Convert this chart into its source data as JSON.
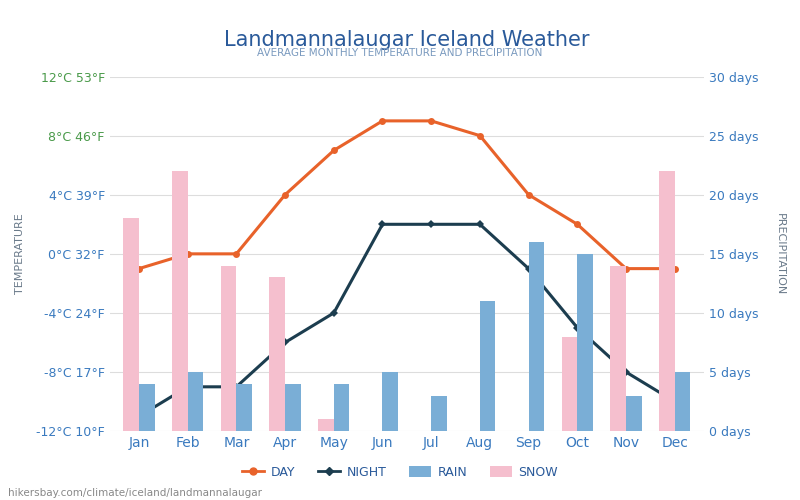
{
  "title": "Landmannalaugar Iceland Weather",
  "subtitle": "AVERAGE MONTHLY TEMPERATURE AND PRECIPITATION",
  "months": [
    "Jan",
    "Feb",
    "Mar",
    "Apr",
    "May",
    "Jun",
    "Jul",
    "Aug",
    "Sep",
    "Oct",
    "Nov",
    "Dec"
  ],
  "day_temp": [
    -1,
    0,
    0,
    4,
    7,
    9,
    9,
    8,
    4,
    2,
    -1,
    -1
  ],
  "night_temp": [
    -11,
    -9,
    -9,
    -6,
    -4,
    2,
    2,
    2,
    -1,
    -5,
    -8,
    -10
  ],
  "rain_days": [
    4,
    5,
    4,
    4,
    4,
    5,
    3,
    11,
    16,
    15,
    3,
    5
  ],
  "snow_days": [
    18,
    22,
    14,
    13,
    1,
    0,
    0,
    0,
    0,
    8,
    14,
    22
  ],
  "temp_yticks": [
    -12,
    -8,
    -4,
    0,
    4,
    8,
    12
  ],
  "temp_ylabels": [
    "-12°C 10°F",
    "-8°C 17°F",
    "-4°C 24°F",
    "0°C 32°F",
    "4°C 39°F",
    "8°C 46°F",
    "12°C 53°F"
  ],
  "precip_yticks": [
    0,
    5,
    10,
    15,
    20,
    25,
    30
  ],
  "precip_ylabels": [
    "0 days",
    "5 days",
    "10 days",
    "15 days",
    "20 days",
    "25 days",
    "30 days"
  ],
  "day_color": "#e8622a",
  "night_color": "#1c3d4f",
  "rain_color": "#7aaed6",
  "snow_color": "#f5bfce",
  "left_tick_color_high": "#4a9a4a",
  "left_tick_color_low": "#3a7abf",
  "title_color": "#2a5a9a",
  "subtitle_color": "#7a9abf",
  "xlabel_color": "#3a7abf",
  "ylabel_left_color": "#6a7a8a",
  "ylabel_right_color": "#6a7a8a",
  "background_color": "#ffffff",
  "grid_color": "#dddddd",
  "watermark": "hikersbay.com/climate/iceland/landmannalaugar",
  "bar_width": 0.32,
  "figsize": [
    8.0,
    5.0
  ],
  "dpi": 100
}
